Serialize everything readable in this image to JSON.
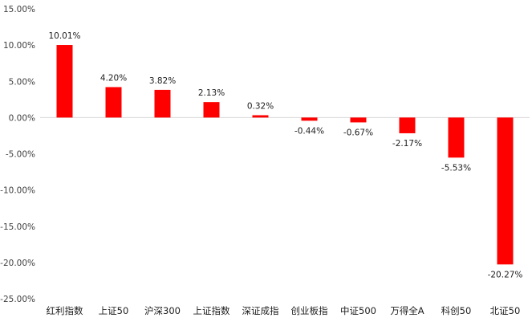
{
  "chart_data": {
    "type": "bar",
    "title": "",
    "xlabel": "",
    "ylabel": "",
    "categories": [
      "红利指数",
      "上证50",
      "沪深300",
      "上证指数",
      "深证成指",
      "创业板指",
      "中证500",
      "万得全A",
      "科创50",
      "北证50"
    ],
    "values": [
      10.01,
      4.2,
      3.82,
      2.13,
      0.32,
      -0.44,
      -0.67,
      -2.17,
      -5.53,
      -20.27
    ],
    "data_labels": [
      "10.01%",
      "4.20%",
      "3.82%",
      "2.13%",
      "0.32%",
      "-0.44%",
      "-0.67%",
      "-2.17%",
      "-5.53%",
      "-20.27%"
    ],
    "yticks": [
      15,
      10,
      5,
      0,
      -5,
      -10,
      -15,
      -20,
      -25
    ],
    "ytick_labels": [
      "15.00%",
      "10.00%",
      "5.00%",
      "0.00%",
      "-5.00%",
      "-10.00%",
      "-15.00%",
      "-20.00%",
      "-25.00%"
    ],
    "ylim": [
      -25,
      15
    ],
    "grid": false,
    "legend": "none",
    "bar_color": "#ff0000",
    "zero_line_color": "#d9d9d9"
  }
}
